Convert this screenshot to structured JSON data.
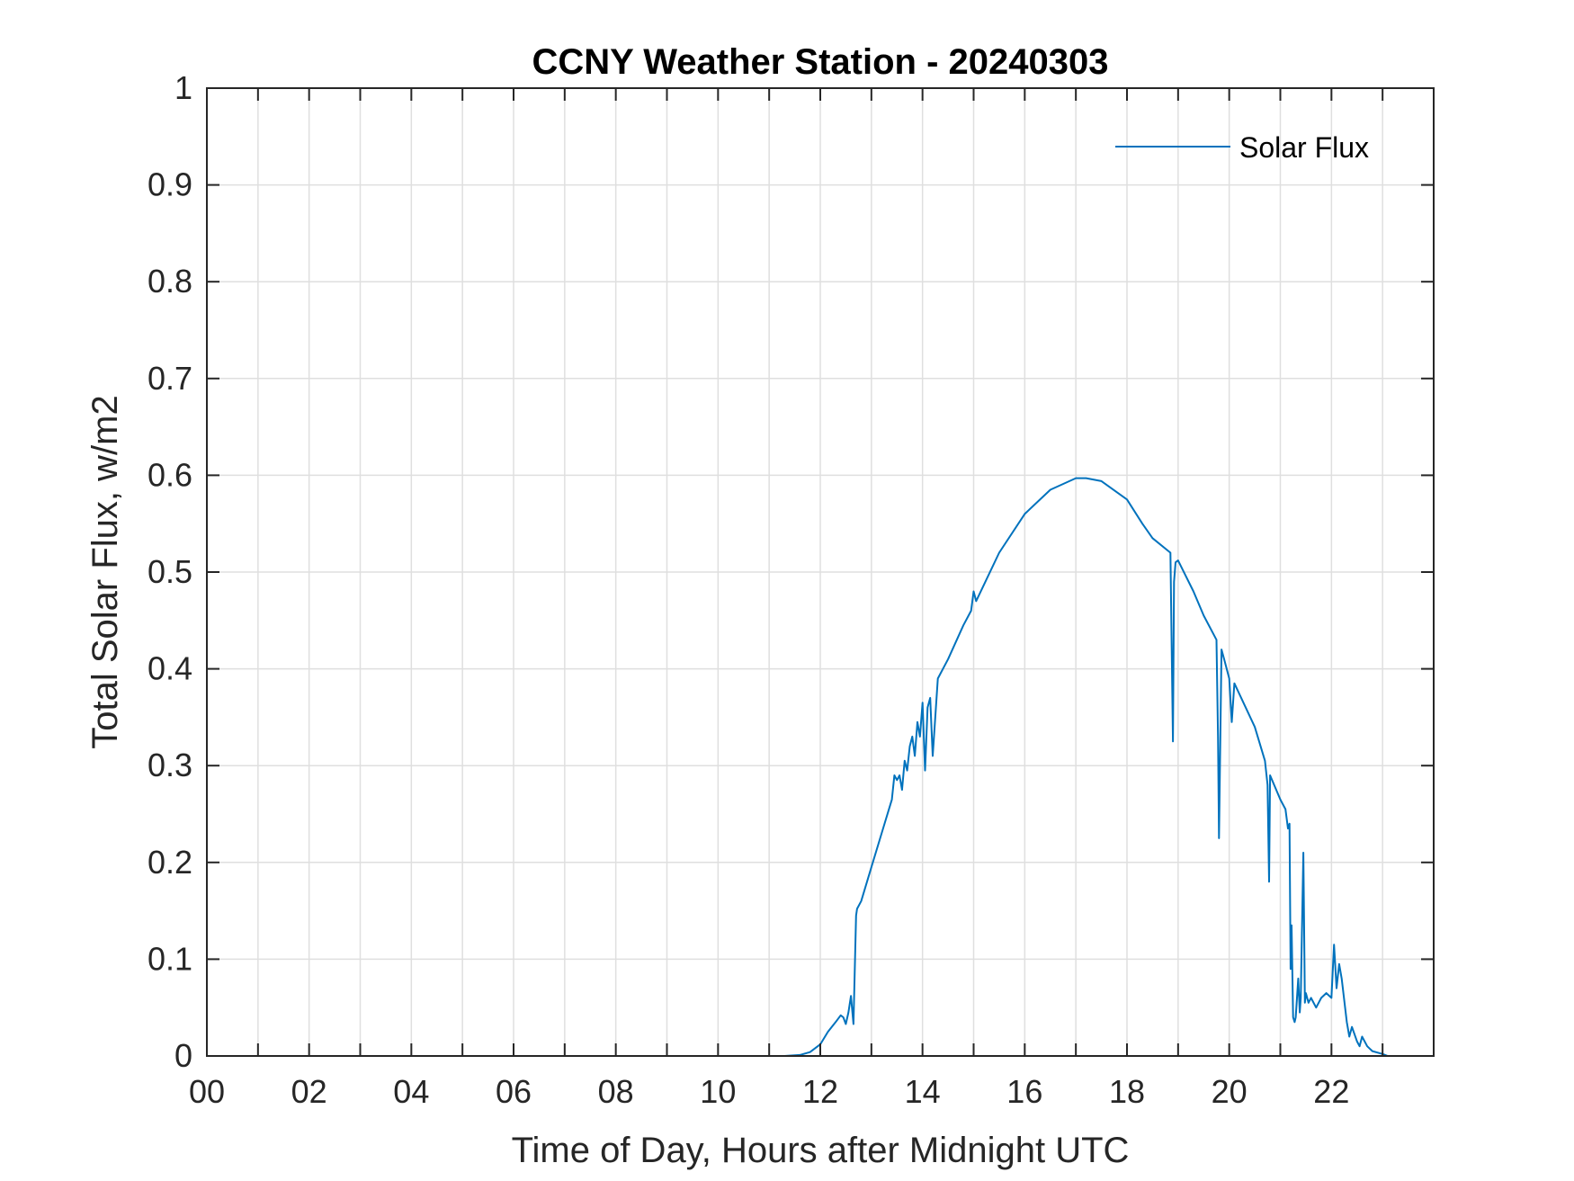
{
  "chart_data": {
    "type": "line",
    "title": "CCNY Weather Station - 20240303",
    "xlabel": "Time of Day, Hours after Midnight UTC",
    "ylabel": "Total Solar Flux, w/m2",
    "xlim": [
      0,
      24
    ],
    "ylim": [
      0,
      1
    ],
    "grid": true,
    "legend_position": "top-right",
    "x_ticks": [
      0,
      2,
      4,
      6,
      8,
      10,
      12,
      14,
      16,
      18,
      20,
      22
    ],
    "x_tick_labels": [
      "00",
      "02",
      "04",
      "06",
      "08",
      "10",
      "12",
      "14",
      "16",
      "18",
      "20",
      "22"
    ],
    "y_ticks": [
      0,
      0.1,
      0.2,
      0.3,
      0.4,
      0.5,
      0.6,
      0.7,
      0.8,
      0.9,
      1
    ],
    "y_tick_labels": [
      "0",
      "0.1",
      "0.2",
      "0.3",
      "0.4",
      "0.5",
      "0.6",
      "0.7",
      "0.8",
      "0.9",
      "1"
    ],
    "series": [
      {
        "name": "Solar Flux",
        "color": "#0072BD",
        "x": [
          0,
          11.0,
          11.3,
          11.6,
          11.8,
          12.0,
          12.15,
          12.3,
          12.4,
          12.45,
          12.5,
          12.55,
          12.6,
          12.65,
          12.7,
          12.72,
          12.8,
          13.0,
          13.2,
          13.4,
          13.45,
          13.5,
          13.55,
          13.6,
          13.65,
          13.7,
          13.75,
          13.8,
          13.85,
          13.9,
          13.95,
          14.0,
          14.05,
          14.1,
          14.15,
          14.2,
          14.3,
          14.5,
          14.8,
          14.95,
          15.0,
          15.05,
          15.5,
          16.0,
          16.5,
          17.0,
          17.2,
          17.5,
          18.0,
          18.3,
          18.5,
          18.85,
          18.9,
          18.92,
          18.95,
          19.0,
          19.3,
          19.5,
          19.75,
          19.78,
          19.8,
          19.85,
          19.9,
          20.0,
          20.05,
          20.1,
          20.5,
          20.7,
          20.75,
          20.78,
          20.8,
          21.0,
          21.1,
          21.15,
          21.18,
          21.2,
          21.22,
          21.25,
          21.28,
          21.3,
          21.35,
          21.38,
          21.4,
          21.45,
          21.48,
          21.5,
          21.55,
          21.6,
          21.7,
          21.8,
          21.9,
          22.0,
          22.05,
          22.1,
          22.15,
          22.2,
          22.3,
          22.35,
          22.4,
          22.5,
          22.55,
          22.6,
          22.7,
          22.8,
          23.0,
          23.1,
          24.0
        ],
        "values": [
          0.0,
          0.0,
          0.0,
          0.001,
          0.004,
          0.012,
          0.025,
          0.035,
          0.042,
          0.04,
          0.033,
          0.045,
          0.062,
          0.033,
          0.145,
          0.152,
          0.16,
          0.195,
          0.23,
          0.265,
          0.29,
          0.285,
          0.29,
          0.275,
          0.305,
          0.295,
          0.32,
          0.33,
          0.31,
          0.345,
          0.33,
          0.365,
          0.295,
          0.36,
          0.37,
          0.31,
          0.39,
          0.41,
          0.445,
          0.46,
          0.48,
          0.47,
          0.52,
          0.56,
          0.585,
          0.597,
          0.597,
          0.594,
          0.575,
          0.55,
          0.535,
          0.52,
          0.325,
          0.49,
          0.51,
          0.512,
          0.48,
          0.455,
          0.43,
          0.33,
          0.225,
          0.42,
          0.41,
          0.39,
          0.345,
          0.385,
          0.34,
          0.305,
          0.28,
          0.18,
          0.29,
          0.265,
          0.255,
          0.235,
          0.24,
          0.09,
          0.135,
          0.04,
          0.035,
          0.04,
          0.08,
          0.045,
          0.06,
          0.21,
          0.055,
          0.065,
          0.055,
          0.06,
          0.05,
          0.06,
          0.065,
          0.06,
          0.115,
          0.07,
          0.095,
          0.08,
          0.035,
          0.02,
          0.03,
          0.015,
          0.01,
          0.02,
          0.01,
          0.005,
          0.002,
          0.0,
          0.0
        ]
      }
    ]
  }
}
